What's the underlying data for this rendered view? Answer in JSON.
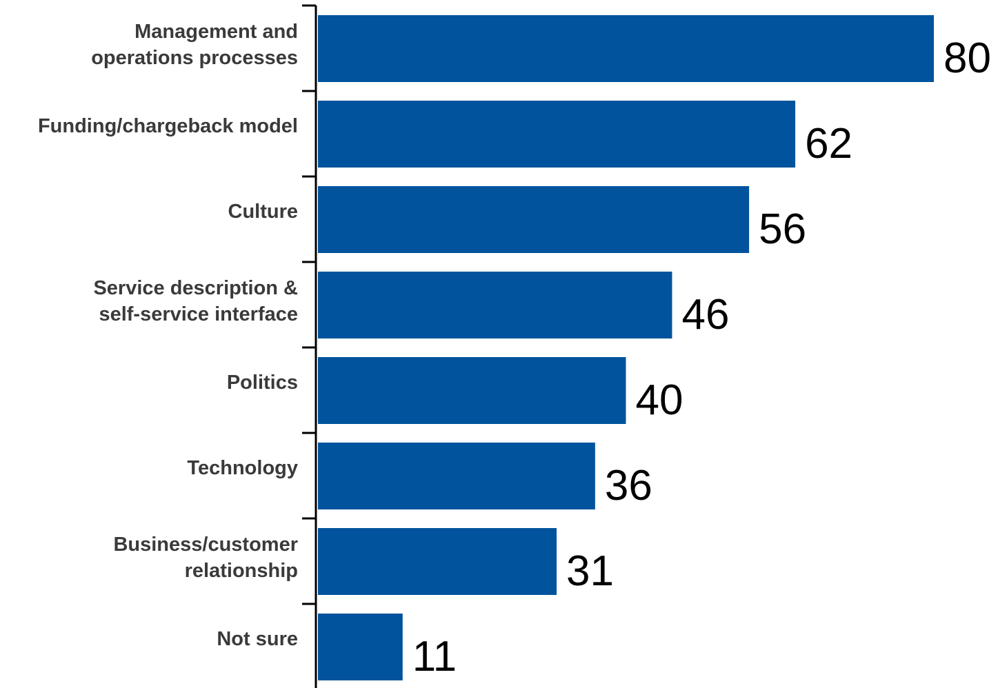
{
  "chart_data": {
    "type": "bar",
    "orientation": "horizontal",
    "title": "",
    "xlabel": "",
    "ylabel": "",
    "categories": [
      [
        "Management and",
        "operations processes"
      ],
      [
        "Funding/chargeback model"
      ],
      [
        "Culture"
      ],
      [
        "Service description &",
        "self-service interface"
      ],
      [
        "Politics"
      ],
      [
        "Technology"
      ],
      [
        "Business/customer",
        "relationship"
      ],
      [
        "Not sure"
      ]
    ],
    "values": [
      80,
      62,
      56,
      46,
      40,
      36,
      31,
      11
    ],
    "xlim": [
      0,
      80
    ],
    "grid": false,
    "legend": "none",
    "data_labels": true,
    "bar_color": "#00539c",
    "axis_color": "#000000",
    "label_color": "#3a3a3a",
    "value_label_color": "#000000"
  }
}
